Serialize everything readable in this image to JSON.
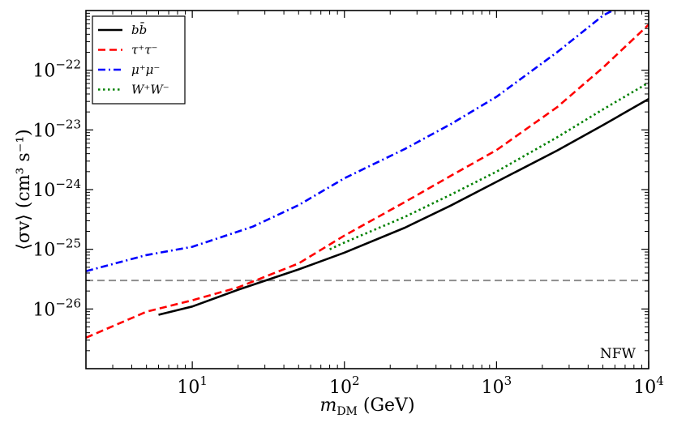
{
  "chart_data": {
    "type": "line",
    "title": "",
    "xlabel": "m_DM (GeV)",
    "ylabel": "⟨σv⟩ (cm³ s⁻¹)",
    "xscale": "log",
    "yscale": "log",
    "xlim": [
      2,
      10000
    ],
    "ylim": [
      1e-27,
      1e-21
    ],
    "grid": false,
    "legend_position": "top-left",
    "annotation": "NFW",
    "x_ticks": [
      {
        "base": "10",
        "exp": "1",
        "value": 10
      },
      {
        "base": "10",
        "exp": "2",
        "value": 100
      },
      {
        "base": "10",
        "exp": "3",
        "value": 1000
      },
      {
        "base": "10",
        "exp": "4",
        "value": 10000
      }
    ],
    "y_ticks": [
      {
        "base": "10",
        "exp": "−26",
        "value": 1e-26
      },
      {
        "base": "10",
        "exp": "−25",
        "value": 1e-25
      },
      {
        "base": "10",
        "exp": "−24",
        "value": 1e-24
      },
      {
        "base": "10",
        "exp": "−23",
        "value": 1e-23
      },
      {
        "base": "10",
        "exp": "−22",
        "value": 1e-22
      }
    ],
    "series": [
      {
        "name": "bb̄",
        "color": "#000000",
        "dash": "solid",
        "points": [
          [
            6,
            8e-27
          ],
          [
            10,
            1.1e-26
          ],
          [
            20,
            2.1e-26
          ],
          [
            50,
            4.6e-26
          ],
          [
            100,
            8.8e-26
          ],
          [
            250,
            2.3e-25
          ],
          [
            500,
            5.4e-25
          ],
          [
            1000,
            1.35e-24
          ],
          [
            2500,
            4.5e-24
          ],
          [
            5000,
            1.2e-23
          ],
          [
            10000,
            3.3e-23
          ]
        ]
      },
      {
        "name": "τ⁺τ⁻",
        "color": "#ff0000",
        "dash": "dashed",
        "points": [
          [
            2,
            3.3e-27
          ],
          [
            5,
            9e-27
          ],
          [
            10,
            1.4e-26
          ],
          [
            20,
            2.3e-26
          ],
          [
            50,
            5.8e-26
          ],
          [
            100,
            1.7e-25
          ],
          [
            250,
            6.2e-25
          ],
          [
            500,
            1.7e-24
          ],
          [
            1000,
            4.6e-24
          ],
          [
            2500,
            2.4e-23
          ],
          [
            5000,
            1.1e-22
          ],
          [
            10000,
            5.8e-22
          ]
        ]
      },
      {
        "name": "μ⁺μ⁻",
        "color": "#0000ff",
        "dash": "dashdot",
        "points": [
          [
            2,
            4.3e-26
          ],
          [
            5,
            8e-26
          ],
          [
            10,
            1.1e-25
          ],
          [
            25,
            2.4e-25
          ],
          [
            50,
            5.5e-25
          ],
          [
            100,
            1.55e-24
          ],
          [
            250,
            4.8e-24
          ],
          [
            500,
            1.25e-23
          ],
          [
            1000,
            3.6e-23
          ],
          [
            2500,
            2e-22
          ],
          [
            5000,
            8.2e-22
          ],
          [
            6000,
            1.05e-21
          ]
        ]
      },
      {
        "name": "W⁺W⁻",
        "color": "#008000",
        "dash": "dotted",
        "points": [
          [
            80,
            1e-25
          ],
          [
            100,
            1.3e-25
          ],
          [
            250,
            3.5e-25
          ],
          [
            500,
            8.2e-25
          ],
          [
            1000,
            2e-24
          ],
          [
            2500,
            7.5e-24
          ],
          [
            5000,
            2.2e-23
          ],
          [
            10000,
            6.2e-23
          ]
        ]
      }
    ],
    "reference_line": {
      "y": 3e-26,
      "color": "#888888",
      "dash": "dashed"
    }
  }
}
